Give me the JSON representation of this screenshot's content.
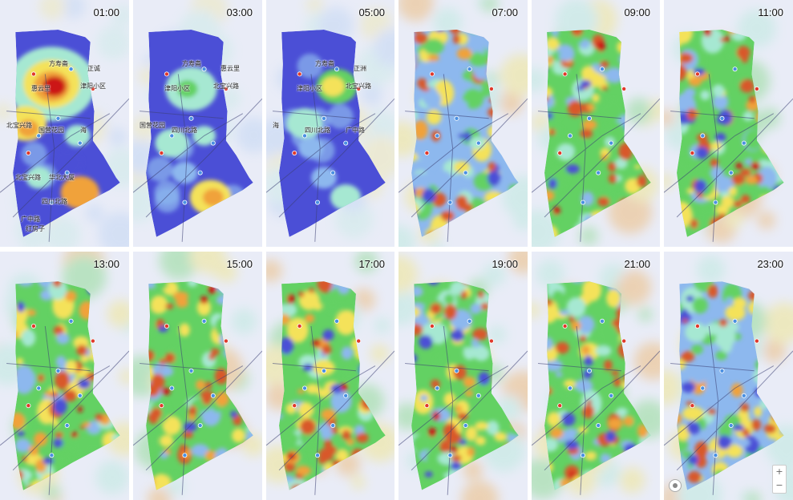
{
  "map": {
    "heat_palette": [
      "#4b4fd6",
      "#8db8ee",
      "#a6e8d2",
      "#63d163",
      "#f4e25a",
      "#f0a23a",
      "#d8582a",
      "#cc1818"
    ],
    "base_color": "#e9ecf7",
    "road_color": "#3b3f74",
    "poi_color": "#4a90e2",
    "metro_color": "#e0392b",
    "panels": [
      {
        "time": "01:00",
        "density": 0.1,
        "labels": [
          "方寿斋",
          "正诚",
          "惠云里",
          "津阳小区",
          "北宝兴路",
          "国营花园",
          "海",
          "北宝兴路",
          "华北大厦",
          "四川北路",
          "广中路",
          "红房子"
        ]
      },
      {
        "time": "03:00",
        "density": 0.05,
        "labels": [
          "方寿斋",
          "惠云里",
          "津阳小区",
          "北宝兴路",
          "国营花园",
          "四川北路"
        ]
      },
      {
        "time": "05:00",
        "density": 0.06,
        "labels": [
          "方寿斋",
          "正洲",
          "津阳小区",
          "北宝兴路",
          "海",
          "四川北路",
          "广中路"
        ]
      },
      {
        "time": "07:00",
        "density": 0.55,
        "labels": []
      },
      {
        "time": "09:00",
        "density": 0.75,
        "labels": []
      },
      {
        "time": "11:00",
        "density": 0.85,
        "labels": []
      },
      {
        "time": "13:00",
        "density": 0.85,
        "labels": []
      },
      {
        "time": "15:00",
        "density": 0.82,
        "labels": []
      },
      {
        "time": "17:00",
        "density": 0.8,
        "labels": []
      },
      {
        "time": "19:00",
        "density": 0.7,
        "labels": []
      },
      {
        "time": "21:00",
        "density": 0.68,
        "labels": []
      },
      {
        "time": "23:00",
        "density": 0.45,
        "labels": []
      }
    ],
    "zoom_in": "+",
    "zoom_out": "−"
  }
}
